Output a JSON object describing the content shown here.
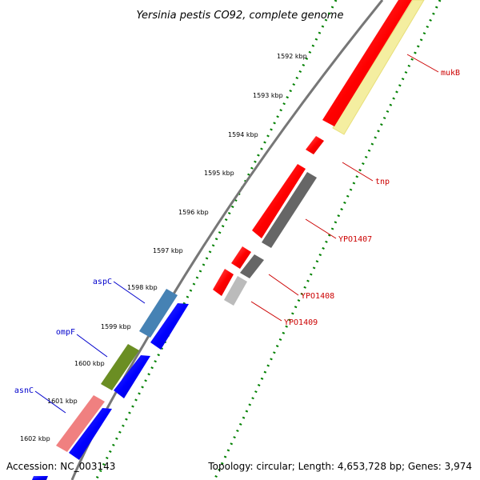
{
  "title": "Yersinia pestis CO92, complete genome",
  "footer": {
    "accession": "Accession: NC_003143",
    "summary": "Topology: circular; Length: 4,653,728 bp; Genes: 3,974"
  },
  "ticks": [
    "1592 kbp",
    "1593 kbp",
    "1594 kbp",
    "1595 kbp",
    "1596 kbp",
    "1597 kbp",
    "1598 kbp",
    "1599 kbp",
    "1600 kbp",
    "1601 kbp",
    "1602 kbp"
  ],
  "genes": {
    "right": [
      {
        "name": "mukB",
        "color": "#cc0000"
      },
      {
        "name": "tnp",
        "color": "#cc0000"
      },
      {
        "name": "YPO1407",
        "color": "#cc0000"
      },
      {
        "name": "YPO1408",
        "color": "#cc0000"
      },
      {
        "name": "YPO1409",
        "color": "#cc0000"
      }
    ],
    "left": [
      {
        "name": "aspC",
        "color": "#0000cc"
      },
      {
        "name": "ompF",
        "color": "#0000cc"
      },
      {
        "name": "asnC",
        "color": "#0000cc"
      }
    ]
  },
  "colors": {
    "forward_red": "#ff0000",
    "forward_blue": "#0000ff",
    "reverse_yellow": "#f4eea0",
    "reverse_gray": "#666666",
    "reverse_lightgray": "#bbbbbb",
    "reverse_steelblue": "#4682b4",
    "reverse_olive": "#6b8e23",
    "reverse_pink": "#f08080",
    "tick_green": "#008000",
    "backbone": "#777777"
  }
}
